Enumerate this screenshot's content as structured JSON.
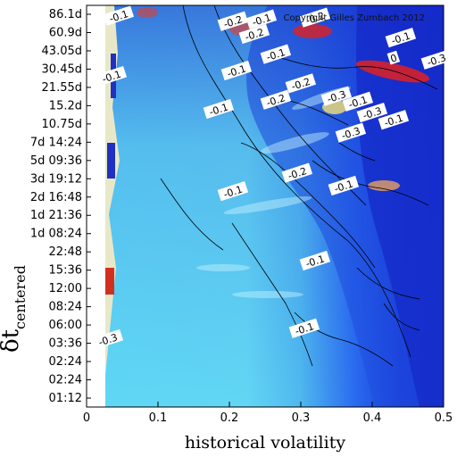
{
  "chart_data": {
    "type": "heatmap",
    "title": "",
    "xlabel": "historical volatility",
    "ylabel": "δt",
    "ylabel_sub": "centered",
    "xlim": [
      0,
      0.5
    ],
    "x_ticks": [
      0,
      0.1,
      0.2,
      0.3,
      0.4,
      0.5
    ],
    "x_tick_labels": [
      "0",
      "0.1",
      "0.2",
      "0.3",
      "0.4",
      "0.5"
    ],
    "y_tick_labels": [
      "01:12",
      "02:24",
      "02:24",
      "03:36",
      "06:00",
      "08:24",
      "12:00",
      "15:36",
      "22:48",
      "1d 08:24",
      "1d 21:36",
      "2d 16:48",
      "3d 19:12",
      "5d 09:36",
      "7d 14:24",
      "10.75d",
      "15.2d",
      "21.55d",
      "30.45d",
      "43.05d",
      "60.9d",
      "86.1d"
    ],
    "copyright": "Copyright Gilles Zumbach 2012",
    "colors": {
      "low": "#1428c8",
      "mid_low": "#2a6cf0",
      "neutral": "#5fd8f5",
      "light": "#c8f4ff",
      "mid_high": "#e8d87a",
      "high": "#e02020"
    },
    "contour_labels": [
      {
        "text": "-0.2",
        "x": 0.205,
        "y": 20.6
      },
      {
        "text": "-0.1",
        "x": 0.245,
        "y": 20.7
      },
      {
        "text": "-0.2",
        "x": 0.32,
        "y": 20.8
      },
      {
        "text": "-0.2",
        "x": 0.235,
        "y": 19.9
      },
      {
        "text": "-0.1",
        "x": 0.265,
        "y": 18.8
      },
      {
        "text": "-0.1",
        "x": 0.21,
        "y": 17.9
      },
      {
        "text": "-0.2",
        "x": 0.3,
        "y": 17.2
      },
      {
        "text": "-0.1",
        "x": 0.38,
        "y": 16.2
      },
      {
        "text": "-0.3",
        "x": 0.35,
        "y": 16.5
      },
      {
        "text": "-0.2",
        "x": 0.265,
        "y": 16.3
      },
      {
        "text": "-0.1",
        "x": 0.185,
        "y": 15.8
      },
      {
        "text": "-0.3",
        "x": 0.4,
        "y": 15.6
      },
      {
        "text": "-0.1",
        "x": 0.43,
        "y": 15.2
      },
      {
        "text": "-0.3",
        "x": 0.37,
        "y": 14.5
      },
      {
        "text": "-0.2",
        "x": 0.295,
        "y": 12.3
      },
      {
        "text": "-0.1",
        "x": 0.36,
        "y": 11.6
      },
      {
        "text": "-0.1",
        "x": 0.205,
        "y": 11.3
      },
      {
        "text": "-0.1",
        "x": 0.32,
        "y": 7.5
      },
      {
        "text": "-0.1",
        "x": 0.305,
        "y": 3.8
      },
      {
        "text": "-0.1",
        "x": 0.44,
        "y": 19.7
      },
      {
        "text": "-0.3",
        "x": 0.49,
        "y": 18.5
      },
      {
        "text": "0",
        "x": 0.43,
        "y": 18.6
      },
      {
        "text": "-0.3",
        "x": 0.03,
        "y": 3.2
      },
      {
        "text": "-0.1",
        "x": 0.035,
        "y": 17.6
      },
      {
        "text": "-0.1",
        "x": 0.045,
        "y": 20.9
      }
    ]
  }
}
